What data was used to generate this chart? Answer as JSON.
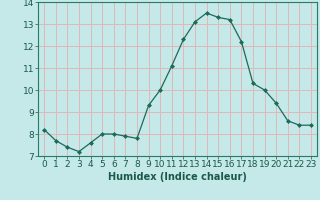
{
  "x": [
    0,
    1,
    2,
    3,
    4,
    5,
    6,
    7,
    8,
    9,
    10,
    11,
    12,
    13,
    14,
    15,
    16,
    17,
    18,
    19,
    20,
    21,
    22,
    23
  ],
  "y": [
    8.2,
    7.7,
    7.4,
    7.2,
    7.6,
    8.0,
    8.0,
    7.9,
    7.8,
    9.3,
    10.0,
    11.1,
    12.3,
    13.1,
    13.5,
    13.3,
    13.2,
    12.2,
    10.3,
    10.0,
    9.4,
    8.6,
    8.4,
    8.4
  ],
  "line_color": "#1b6b5a",
  "marker_color": "#1b6b5a",
  "bg_color": "#c5e8e8",
  "grid_color": "#e0b8b8",
  "xlabel": "Humidex (Indice chaleur)",
  "ylim": [
    7,
    14
  ],
  "xlim": [
    -0.5,
    23.5
  ],
  "yticks": [
    7,
    8,
    9,
    10,
    11,
    12,
    13,
    14
  ],
  "xticks": [
    0,
    1,
    2,
    3,
    4,
    5,
    6,
    7,
    8,
    9,
    10,
    11,
    12,
    13,
    14,
    15,
    16,
    17,
    18,
    19,
    20,
    21,
    22,
    23
  ],
  "label_fontsize": 7,
  "tick_fontsize": 6.5
}
